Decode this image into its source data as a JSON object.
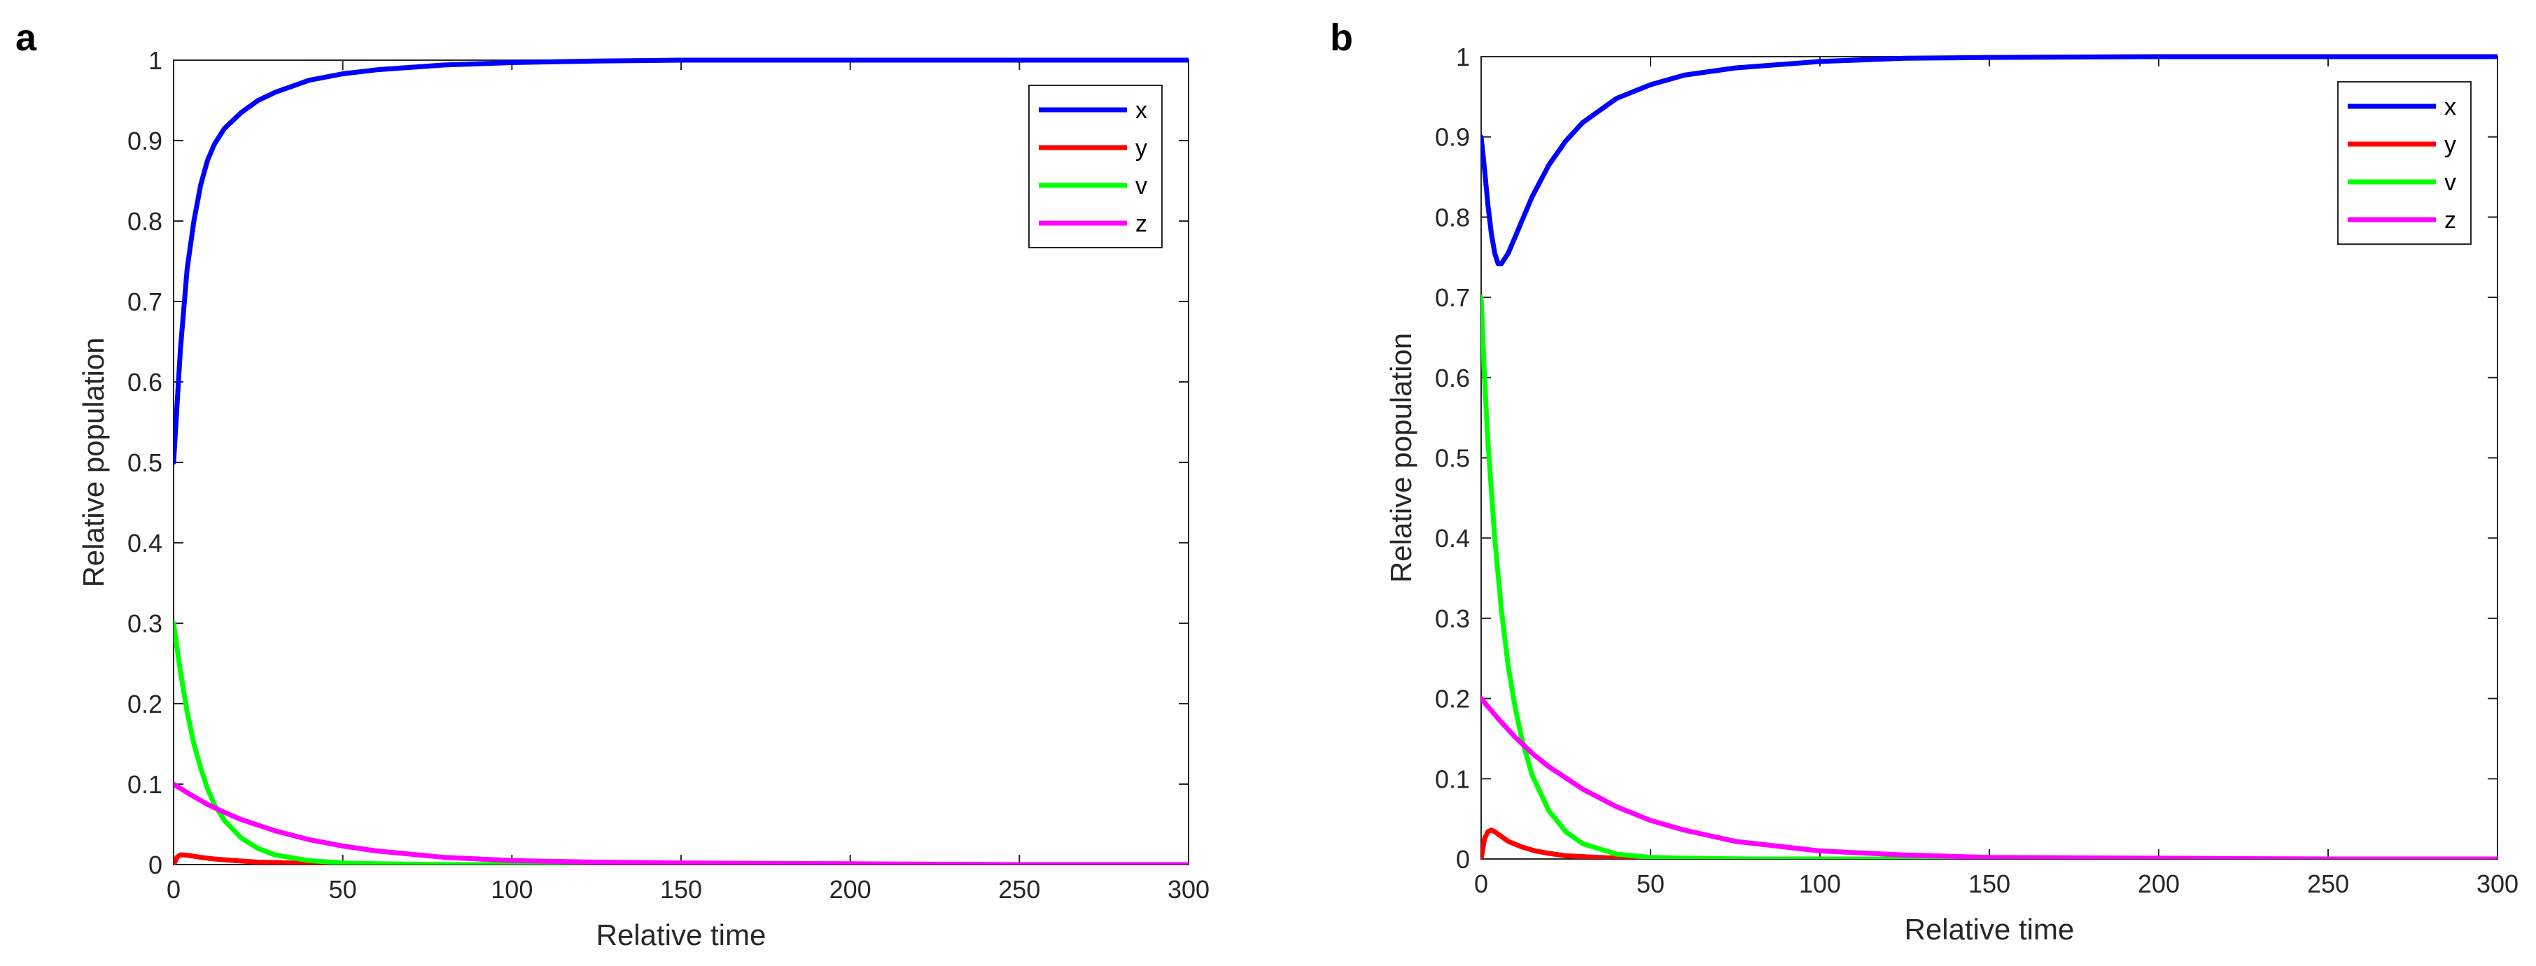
{
  "figure": {
    "panels": [
      "a",
      "b"
    ]
  },
  "chart_data": [
    {
      "type": "line",
      "panel_label": "a",
      "xlabel": "Relative time",
      "ylabel": "Relative population",
      "xlim": [
        0,
        300
      ],
      "ylim": [
        0,
        1
      ],
      "xticks": [
        "0",
        "50",
        "100",
        "150",
        "200",
        "250",
        "300"
      ],
      "yticks": [
        "0",
        "0.1",
        "0.2",
        "0.3",
        "0.4",
        "0.5",
        "0.6",
        "0.7",
        "0.8",
        "0.9",
        "1"
      ],
      "legend_position": "top-right",
      "series": [
        {
          "name": "x",
          "color": "#0000ff",
          "x": [
            0,
            2,
            4,
            6,
            8,
            10,
            12,
            15,
            20,
            25,
            30,
            40,
            50,
            60,
            80,
            100,
            125,
            150,
            200,
            250,
            300
          ],
          "values": [
            0.5,
            0.64,
            0.74,
            0.8,
            0.845,
            0.875,
            0.895,
            0.915,
            0.935,
            0.95,
            0.96,
            0.975,
            0.983,
            0.988,
            0.994,
            0.997,
            0.999,
            1.0,
            1.0,
            1.0,
            1.0
          ]
        },
        {
          "name": "y",
          "color": "#ff0000",
          "x": [
            0,
            1,
            2,
            3,
            5,
            8,
            12,
            18,
            25,
            35,
            50,
            75,
            100,
            150,
            200,
            300
          ],
          "values": [
            0.0,
            0.009,
            0.012,
            0.012,
            0.011,
            0.009,
            0.007,
            0.005,
            0.003,
            0.002,
            0.001,
            0.0,
            0.0,
            0.0,
            0.0,
            0.0
          ]
        },
        {
          "name": "v",
          "color": "#00ff00",
          "x": [
            0,
            2,
            4,
            6,
            8,
            10,
            12,
            15,
            20,
            25,
            30,
            40,
            50,
            60,
            80,
            100,
            150,
            200,
            300
          ],
          "values": [
            0.3,
            0.24,
            0.19,
            0.15,
            0.12,
            0.095,
            0.075,
            0.055,
            0.033,
            0.02,
            0.012,
            0.005,
            0.002,
            0.001,
            0.0,
            0.0,
            0.0,
            0.0,
            0.0
          ]
        },
        {
          "name": "z",
          "color": "#ff00ff",
          "x": [
            0,
            5,
            10,
            15,
            20,
            30,
            40,
            50,
            60,
            80,
            100,
            125,
            150,
            200,
            250,
            300
          ],
          "values": [
            0.1,
            0.087,
            0.075,
            0.065,
            0.056,
            0.042,
            0.031,
            0.023,
            0.017,
            0.009,
            0.005,
            0.003,
            0.002,
            0.001,
            0.0,
            0.0
          ]
        }
      ]
    },
    {
      "type": "line",
      "panel_label": "b",
      "xlabel": "Relative time",
      "ylabel": "Relative population",
      "xlim": [
        0,
        300
      ],
      "ylim": [
        0,
        1
      ],
      "xticks": [
        "0",
        "50",
        "100",
        "150",
        "200",
        "250",
        "300"
      ],
      "yticks": [
        "0",
        "0.1",
        "0.2",
        "0.3",
        "0.4",
        "0.5",
        "0.6",
        "0.7",
        "0.8",
        "0.9",
        "1"
      ],
      "legend_position": "top-right",
      "series": [
        {
          "name": "x",
          "color": "#0000ff",
          "x": [
            0,
            1,
            2,
            3,
            4,
            5,
            6,
            8,
            10,
            12,
            15,
            20,
            25,
            30,
            40,
            50,
            60,
            75,
            100,
            125,
            150,
            200,
            250,
            300
          ],
          "values": [
            0.9,
            0.86,
            0.815,
            0.78,
            0.755,
            0.742,
            0.742,
            0.755,
            0.775,
            0.795,
            0.825,
            0.865,
            0.895,
            0.918,
            0.948,
            0.965,
            0.977,
            0.986,
            0.994,
            0.998,
            0.999,
            1.0,
            1.0,
            1.0
          ]
        },
        {
          "name": "y",
          "color": "#ff0000",
          "x": [
            0,
            1,
            2,
            3,
            4,
            6,
            8,
            12,
            16,
            20,
            25,
            30,
            40,
            50,
            75,
            100,
            150,
            200,
            300
          ],
          "values": [
            0.0,
            0.025,
            0.034,
            0.036,
            0.034,
            0.028,
            0.022,
            0.015,
            0.01,
            0.007,
            0.004,
            0.003,
            0.001,
            0.0,
            0.0,
            0.0,
            0.0,
            0.0,
            0.0
          ]
        },
        {
          "name": "v",
          "color": "#00ff00",
          "x": [
            0,
            1,
            2,
            4,
            6,
            8,
            10,
            12,
            15,
            20,
            25,
            30,
            40,
            50,
            60,
            80,
            100,
            150,
            200,
            300
          ],
          "values": [
            0.7,
            0.6,
            0.52,
            0.4,
            0.31,
            0.24,
            0.19,
            0.15,
            0.105,
            0.06,
            0.034,
            0.019,
            0.006,
            0.002,
            0.001,
            0.0,
            0.0,
            0.0,
            0.0,
            0.0
          ]
        },
        {
          "name": "z",
          "color": "#ff00ff",
          "x": [
            0,
            5,
            10,
            15,
            20,
            30,
            40,
            50,
            60,
            75,
            100,
            125,
            150,
            200,
            250,
            300
          ],
          "values": [
            0.2,
            0.175,
            0.152,
            0.132,
            0.115,
            0.087,
            0.065,
            0.048,
            0.036,
            0.022,
            0.01,
            0.005,
            0.002,
            0.001,
            0.0,
            0.0
          ]
        }
      ]
    }
  ]
}
